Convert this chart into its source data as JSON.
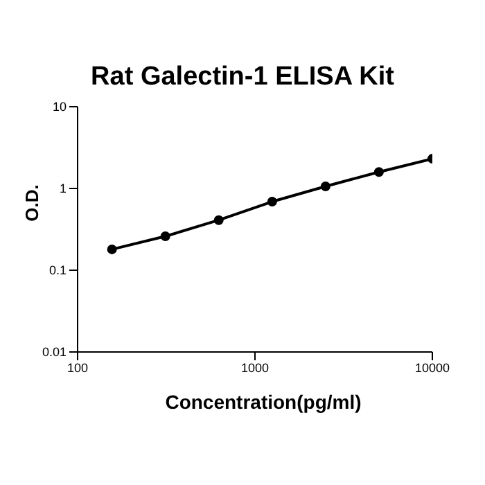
{
  "chart_data": {
    "type": "line",
    "title": "Rat Galectin-1 ELISA Kit",
    "xlabel": "Concentration(pg/ml)",
    "ylabel": "O.D.",
    "x": [
      156.25,
      312.5,
      625,
      1250,
      2500,
      5000,
      10000
    ],
    "series": [
      {
        "color": "#000000",
        "values": [
          0.18,
          0.26,
          0.41,
          0.69,
          1.06,
          1.59,
          2.31
        ]
      }
    ],
    "log": "xy",
    "xlim": [
      100,
      10000
    ],
    "xticks": [
      100,
      1000,
      10000
    ],
    "ylim": [
      0.01,
      10
    ],
    "yticks": [
      0.01,
      0.1,
      1,
      10
    ],
    "grid": false,
    "legend": false,
    "marker": "circle",
    "line_style": "solid"
  }
}
